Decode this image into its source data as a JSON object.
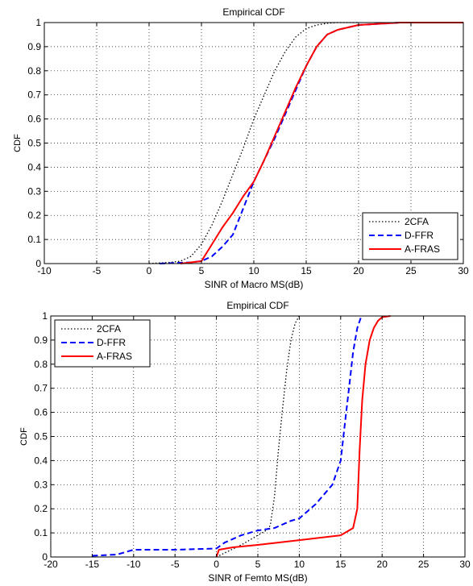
{
  "chart_data": [
    {
      "type": "line",
      "title": "Empirical CDF",
      "xlabel": "SINR of Macro MS(dB)",
      "ylabel": "CDF",
      "xlim": [
        -10,
        30
      ],
      "ylim": [
        0,
        1
      ],
      "xticks": [
        "-10",
        "-5",
        "0",
        "5",
        "10",
        "15",
        "20",
        "25",
        "30"
      ],
      "yticks": [
        "0",
        "0.1",
        "0.2",
        "0.3",
        "0.4",
        "0.5",
        "0.6",
        "0.7",
        "0.8",
        "0.9",
        "1"
      ],
      "grid": true,
      "legend_position": "bottom-right",
      "series": [
        {
          "name": "2CFA",
          "style": "dotted",
          "color": "#000000",
          "x": [
            0,
            2,
            3,
            4,
            5,
            6,
            7,
            8,
            9,
            10,
            11,
            12,
            13,
            14,
            15,
            16,
            17,
            18,
            20
          ],
          "y": [
            0,
            0.005,
            0.01,
            0.03,
            0.08,
            0.16,
            0.26,
            0.37,
            0.48,
            0.6,
            0.7,
            0.8,
            0.88,
            0.94,
            0.975,
            0.99,
            0.997,
            1,
            1
          ]
        },
        {
          "name": "D-FFR",
          "style": "dashed",
          "color": "#0000ff",
          "x": [
            1,
            4,
            5,
            6,
            7,
            8,
            9,
            10,
            11,
            12,
            13,
            14,
            15,
            16,
            17,
            18,
            19,
            20,
            22,
            24,
            30
          ],
          "y": [
            0,
            0.005,
            0.01,
            0.03,
            0.07,
            0.12,
            0.23,
            0.34,
            0.43,
            0.52,
            0.62,
            0.72,
            0.82,
            0.9,
            0.95,
            0.97,
            0.98,
            0.99,
            0.995,
            1,
            1
          ]
        },
        {
          "name": "A-FRAS",
          "style": "solid",
          "color": "#ff0000",
          "x": [
            3,
            5,
            6,
            7,
            8,
            9,
            10,
            11,
            12,
            13,
            14,
            15,
            16,
            17,
            18,
            19,
            20,
            22,
            24,
            30
          ],
          "y": [
            0,
            0.01,
            0.08,
            0.15,
            0.21,
            0.28,
            0.34,
            0.43,
            0.53,
            0.63,
            0.73,
            0.82,
            0.9,
            0.95,
            0.97,
            0.98,
            0.99,
            0.995,
            1,
            1
          ]
        }
      ]
    },
    {
      "type": "line",
      "title": "Empirical CDF",
      "xlabel": "SINR of Femto MS(dB)",
      "ylabel": "CDF",
      "xlim": [
        -20,
        30
      ],
      "ylim": [
        0,
        1
      ],
      "xticks": [
        "-20",
        "-15",
        "-10",
        "-5",
        "0",
        "5",
        "10",
        "15",
        "20",
        "25",
        "30"
      ],
      "yticks": [
        "0",
        "0.1",
        "0.2",
        "0.3",
        "0.4",
        "0.5",
        "0.6",
        "0.7",
        "0.8",
        "0.9",
        "1"
      ],
      "grid": true,
      "legend_position": "top-left",
      "series": [
        {
          "name": "2CFA",
          "style": "dotted",
          "color": "#000000",
          "x": [
            0,
            3,
            5,
            6,
            6.5,
            7,
            7.5,
            8,
            8.5,
            9,
            9.5,
            10
          ],
          "y": [
            0,
            0.05,
            0.09,
            0.11,
            0.13,
            0.25,
            0.45,
            0.62,
            0.78,
            0.9,
            0.97,
            1
          ]
        },
        {
          "name": "D-FFR",
          "style": "dashed",
          "color": "#0000ff",
          "x": [
            -15,
            -12,
            -10,
            -5,
            0,
            1,
            3,
            5,
            7,
            9,
            10,
            11,
            12,
            13,
            14,
            15,
            15.5,
            16,
            16.5,
            17,
            17.5
          ],
          "y": [
            0.005,
            0.01,
            0.03,
            0.03,
            0.035,
            0.06,
            0.09,
            0.11,
            0.12,
            0.15,
            0.16,
            0.19,
            0.22,
            0.26,
            0.3,
            0.4,
            0.55,
            0.7,
            0.85,
            0.95,
            1
          ]
        },
        {
          "name": "A-FRAS",
          "style": "solid",
          "color": "#ff0000",
          "x": [
            0,
            0.3,
            2,
            5,
            10,
            15,
            16.5,
            17,
            17.3,
            17.6,
            18,
            18.5,
            19,
            19.5,
            20,
            21
          ],
          "y": [
            0,
            0.03,
            0.04,
            0.05,
            0.07,
            0.09,
            0.12,
            0.2,
            0.45,
            0.65,
            0.8,
            0.9,
            0.95,
            0.98,
            0.995,
            1
          ]
        }
      ]
    }
  ]
}
